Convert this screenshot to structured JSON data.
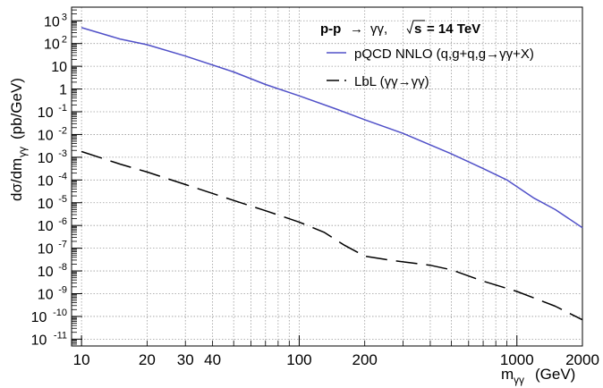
{
  "chart_data": {
    "type": "line",
    "title_parts": {
      "process": "p-p",
      "arrow": "→",
      "final_state": "γγ,",
      "sqrt_label": "s",
      "energy": "= 14 TeV"
    },
    "xlabel": {
      "main": "m",
      "sub": "γγ",
      "unit": "(GeV)"
    },
    "ylabel": {
      "main": "dσ/dm",
      "sub": "γγ",
      "unit": "(pb/GeV)"
    },
    "xscale": "log",
    "yscale": "log",
    "xlim": [
      9,
      2000
    ],
    "ylim_exponent": [
      -11.3,
      3.6
    ],
    "grid": true,
    "legend_position": "top-right",
    "x_ticks": [
      {
        "value": 10,
        "label": "10"
      },
      {
        "value": 20,
        "label": "20"
      },
      {
        "value": 30,
        "label": "30"
      },
      {
        "value": 40,
        "label": "40"
      },
      {
        "value": 100,
        "label": "100"
      },
      {
        "value": 200,
        "label": "200"
      },
      {
        "value": 1000,
        "label": "1000"
      },
      {
        "value": 2000,
        "label": "2000"
      }
    ],
    "y_ticks": [
      {
        "exp": 3,
        "base": "10",
        "sup": "3"
      },
      {
        "exp": 2,
        "base": "10",
        "sup": "2"
      },
      {
        "exp": 1,
        "base": "10",
        "sup": ""
      },
      {
        "exp": 0,
        "base": "1",
        "sup": ""
      },
      {
        "exp": -1,
        "base": "10",
        "sup": "-1"
      },
      {
        "exp": -2,
        "base": "10",
        "sup": "-2"
      },
      {
        "exp": -3,
        "base": "10",
        "sup": "-3"
      },
      {
        "exp": -4,
        "base": "10",
        "sup": "-4"
      },
      {
        "exp": -5,
        "base": "10",
        "sup": "-5"
      },
      {
        "exp": -6,
        "base": "10",
        "sup": "-6"
      },
      {
        "exp": -7,
        "base": "10",
        "sup": "-7"
      },
      {
        "exp": -8,
        "base": "10",
        "sup": "-8"
      },
      {
        "exp": -9,
        "base": "10",
        "sup": "-9"
      },
      {
        "exp": -10,
        "base": "10",
        "sup": "-10"
      },
      {
        "exp": -11,
        "base": "10",
        "sup": "-11"
      }
    ],
    "series": [
      {
        "name": "pQCD NNLO (q,g+q,g→γγ+X)",
        "color": "#5050c8",
        "dash": "solid",
        "x": [
          10,
          15,
          20,
          30,
          50,
          70,
          100,
          150,
          200,
          300,
          500,
          700,
          900,
          1200,
          1500,
          2000
        ],
        "log10_y": [
          2.7,
          2.2,
          1.95,
          1.45,
          0.75,
          0.2,
          -0.3,
          -0.9,
          -1.35,
          -1.95,
          -2.85,
          -3.5,
          -4.0,
          -4.8,
          -5.3,
          -6.1
        ]
      },
      {
        "name": "LbL (γγ→γγ)",
        "color": "#000000",
        "dash": "long-dash",
        "x": [
          10,
          15,
          20,
          30,
          50,
          70,
          100,
          130,
          160,
          200,
          250,
          300,
          400,
          500,
          700,
          1000,
          1500,
          2000
        ],
        "log10_y": [
          -2.75,
          -3.3,
          -3.65,
          -4.2,
          -4.9,
          -5.35,
          -5.85,
          -6.3,
          -6.85,
          -7.35,
          -7.5,
          -7.6,
          -7.75,
          -7.95,
          -8.45,
          -8.9,
          -9.55,
          -10.15
        ]
      }
    ]
  }
}
